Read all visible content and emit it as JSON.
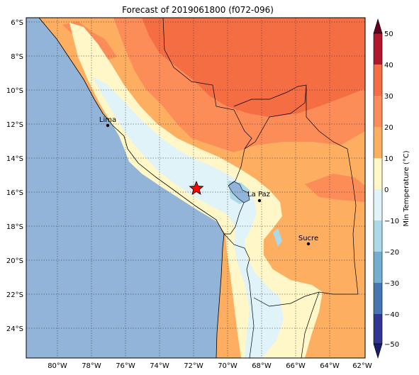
{
  "title": "Forecast of 2019061800 (f072-096)",
  "colorbar": {
    "label": "Min Temperature (°C)",
    "ticks": [
      "50",
      "40",
      "30",
      "20",
      "10",
      "0",
      "−10",
      "−20",
      "−30",
      "−40",
      "−50"
    ]
  },
  "axes": {
    "lat_ticks": [
      "6°S",
      "8°S",
      "10°S",
      "12°S",
      "14°S",
      "16°S",
      "18°S",
      "20°S",
      "22°S",
      "24°S"
    ],
    "lon_ticks": [
      "80°W",
      "78°W",
      "76°W",
      "74°W",
      "72°W",
      "70°W",
      "68°W",
      "66°W",
      "64°W",
      "62°W"
    ]
  },
  "cities": [
    {
      "name": "Lima"
    },
    {
      "name": "La Paz"
    },
    {
      "name": "Sucre"
    }
  ],
  "colors": {
    "ocean": "#92b4d8",
    "band_30_40": "#f46d43",
    "band_20_30": "#fc8d59",
    "band_10_20": "#fdae61",
    "band_0_10": "#fff7c8",
    "band_m10_0": "#e0f3f8",
    "band_m20_m10": "#abd9e9",
    "star": "#ff0000"
  }
}
